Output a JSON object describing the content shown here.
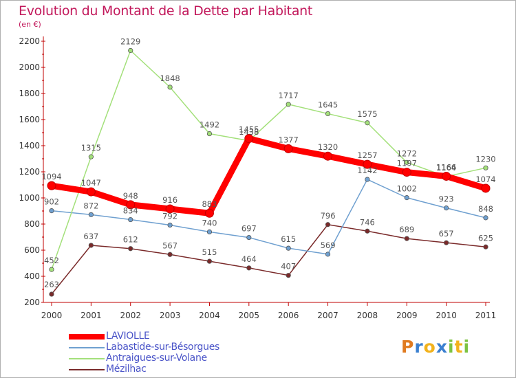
{
  "header": {
    "title": "Evolution du Montant de la Dette par Habitant",
    "subtitle": "(en €)"
  },
  "logo": {
    "letters": [
      "P",
      "r",
      "o",
      "x",
      "i",
      "t",
      "i"
    ],
    "colors": [
      "#e07b20",
      "#3a7fd0",
      "#f2b21c",
      "#3a7fd0",
      "#7cc242",
      "#f2b21c",
      "#7cc242"
    ]
  },
  "chart_data": {
    "type": "line",
    "title": "Evolution du Montant de la Dette par Habitant",
    "subtitle": "(en €)",
    "x": [
      "2000",
      "2001",
      "2002",
      "2003",
      "2004",
      "2005",
      "2006",
      "2007",
      "2008",
      "2009",
      "2010",
      "2011"
    ],
    "ylim": [
      200,
      2200
    ],
    "yticks": [
      200,
      400,
      600,
      800,
      1000,
      1200,
      1400,
      1600,
      1800,
      2000,
      2200
    ],
    "grid": false,
    "legend_position": "bottom-left",
    "series": [
      {
        "name": "LAVIOLLE",
        "color": "#ff0000",
        "values": [
          1094,
          1047,
          948,
          916,
          883,
          1455,
          1377,
          1320,
          1257,
          1197,
          1166,
          1074
        ]
      },
      {
        "name": "Labastide-sur-Bésorgues",
        "color": "#6fa0d0",
        "values": [
          902,
          872,
          834,
          792,
          740,
          697,
          615,
          569,
          1142,
          1002,
          923,
          848
        ]
      },
      {
        "name": "Antraigues-sur-Volane",
        "color": "#a3e07a",
        "values": [
          452,
          1315,
          2129,
          1848,
          1492,
          1438,
          1717,
          1645,
          1575,
          1272,
          1164,
          1230
        ]
      },
      {
        "name": "Mézilhac",
        "color": "#7a2a2a",
        "values": [
          263,
          637,
          612,
          567,
          515,
          464,
          407,
          796,
          746,
          689,
          657,
          625
        ]
      }
    ]
  }
}
